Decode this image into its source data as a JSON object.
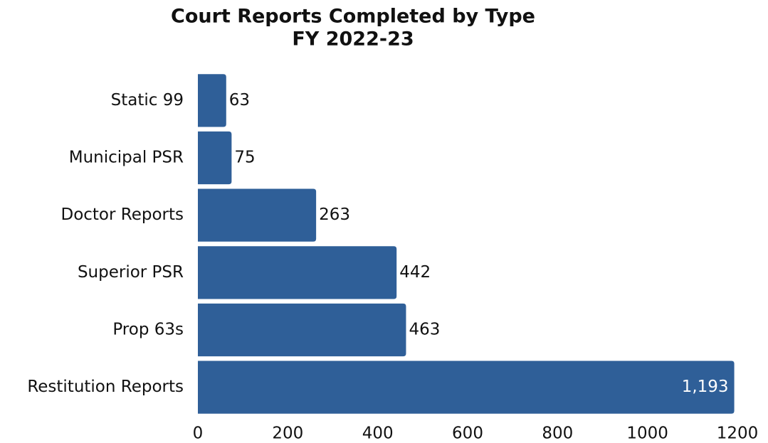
{
  "chart_data": {
    "type": "bar",
    "orientation": "horizontal",
    "title": "Court Reports Completed by Type",
    "subtitle": "FY 2022-23",
    "categories": [
      "Static 99",
      "Municipal PSR",
      "Doctor Reports",
      "Superior PSR",
      "Prop 63s",
      "Restitution Reports"
    ],
    "values": [
      63,
      75,
      263,
      442,
      463,
      1193
    ],
    "value_labels": [
      "63",
      "75",
      "263",
      "442",
      "463",
      "1,193"
    ],
    "color": "#2f5f98",
    "xlim": [
      0,
      1200
    ],
    "xticks": [
      0,
      200,
      400,
      600,
      800,
      1000,
      1200
    ],
    "grid": false
  }
}
